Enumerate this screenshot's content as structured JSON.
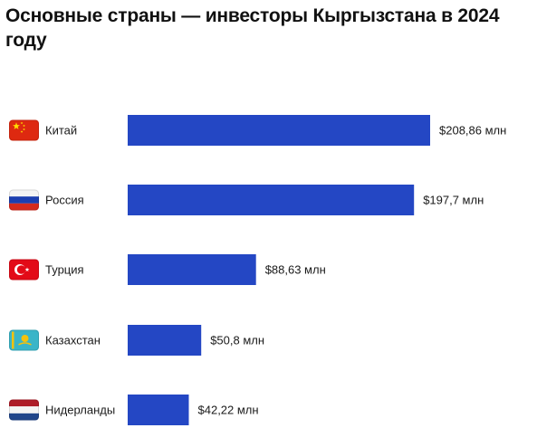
{
  "chart_data": {
    "type": "bar",
    "orientation": "horizontal",
    "title": "Основные страны — инвесторы Кыргызстана в 2024 году",
    "categories": [
      "Китай",
      "Россия",
      "Турция",
      "Казахстан",
      "Нидерланды"
    ],
    "values": [
      208.86,
      197.7,
      88.63,
      50.8,
      42.22
    ],
    "value_labels": [
      "$208,86 млн",
      "$197,7 млн",
      "$88,63 млн",
      "$50,8 млн",
      "$42,22 млн"
    ],
    "flags": [
      "china-flag",
      "russia-flag",
      "turkey-flag",
      "kazakhstan-flag",
      "netherlands-flag"
    ],
    "xlabel": "",
    "ylabel": "",
    "xlim": [
      0,
      208.86
    ],
    "grid": false,
    "bar_color": "#2447c4"
  }
}
